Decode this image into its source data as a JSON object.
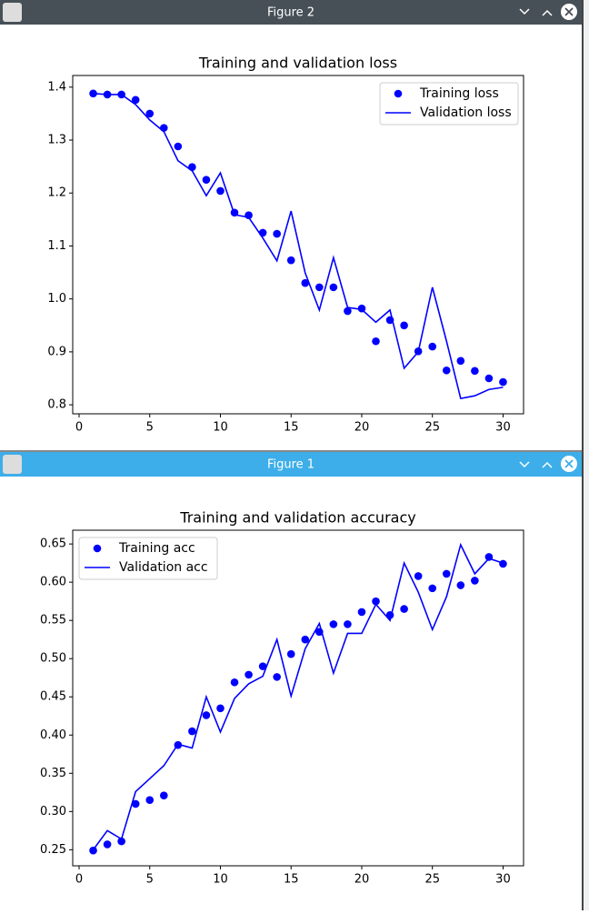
{
  "windows": [
    {
      "title": "Figure 2"
    },
    {
      "title": "Figure 1"
    }
  ],
  "chart_data": [
    {
      "type": "scatter-line",
      "title": "Training and validation loss",
      "x": [
        1,
        2,
        3,
        4,
        5,
        6,
        7,
        8,
        9,
        10,
        11,
        12,
        13,
        14,
        15,
        16,
        17,
        18,
        19,
        20,
        21,
        22,
        23,
        24,
        25,
        26,
        27,
        28,
        29,
        30
      ],
      "series": [
        {
          "name": "Training loss",
          "color": "#0000ff",
          "style": "dots",
          "values": [
            1.388,
            1.386,
            1.386,
            1.376,
            1.35,
            1.323,
            1.288,
            1.249,
            1.225,
            1.204,
            1.163,
            1.158,
            1.125,
            1.123,
            1.073,
            1.03,
            1.022,
            1.022,
            0.977,
            0.982,
            0.92,
            0.96,
            0.95,
            0.901,
            0.91,
            0.865,
            0.883,
            0.864,
            0.85,
            0.843
          ]
        },
        {
          "name": "Validation loss",
          "color": "#0000ff",
          "style": "line",
          "values": [
            1.388,
            1.386,
            1.386,
            1.367,
            1.338,
            1.316,
            1.261,
            1.242,
            1.195,
            1.238,
            1.159,
            1.154,
            1.115,
            1.072,
            1.166,
            1.049,
            0.979,
            1.078,
            0.984,
            0.98,
            0.956,
            0.979,
            0.869,
            0.9,
            1.022,
            0.92,
            0.812,
            0.817,
            0.829,
            0.833
          ]
        }
      ],
      "xlim": [
        -0.45,
        31.45
      ],
      "xticks": [
        0,
        5,
        10,
        15,
        20,
        25,
        30
      ],
      "ylim": [
        0.783,
        1.422
      ],
      "yticks": [
        0.8,
        0.9,
        {
          "value": 1,
          "label": "1.0"
        },
        1.1,
        1.2,
        1.3,
        1.4
      ],
      "legend": "upper right"
    },
    {
      "type": "scatter-line",
      "title": "Training and validation accuracy",
      "x": [
        1,
        2,
        3,
        4,
        5,
        6,
        7,
        8,
        9,
        10,
        11,
        12,
        13,
        14,
        15,
        16,
        17,
        18,
        19,
        20,
        21,
        22,
        23,
        24,
        25,
        26,
        27,
        28,
        29,
        30
      ],
      "series": [
        {
          "name": "Training acc",
          "color": "#0000ff",
          "style": "dots",
          "values": [
            0.249,
            0.257,
            0.261,
            0.31,
            0.315,
            0.321,
            0.387,
            0.405,
            0.426,
            0.435,
            0.469,
            0.479,
            0.49,
            0.476,
            0.506,
            0.525,
            0.535,
            0.545,
            0.545,
            0.561,
            0.575,
            0.557,
            0.565,
            0.608,
            0.592,
            0.611,
            0.596,
            0.602,
            0.633,
            0.624
          ]
        },
        {
          "name": "Validation acc",
          "color": "#0000ff",
          "style": "line",
          "values": [
            0.25,
            0.275,
            0.264,
            0.326,
            0.343,
            0.36,
            0.388,
            0.383,
            0.45,
            0.404,
            0.448,
            0.467,
            0.477,
            0.525,
            0.451,
            0.513,
            0.546,
            0.481,
            0.533,
            0.533,
            0.571,
            0.55,
            0.625,
            0.587,
            0.538,
            0.581,
            0.649,
            0.611,
            0.631,
            0.625
          ]
        }
      ],
      "xlim": [
        -0.45,
        31.45
      ],
      "xticks": [
        0,
        5,
        10,
        15,
        20,
        25,
        30
      ],
      "ylim": [
        0.229,
        0.668
      ],
      "yticks": [
        0.25,
        {
          "value": 0.3,
          "label": "0.30"
        },
        0.35,
        {
          "value": 0.4,
          "label": "0.40"
        },
        0.45,
        {
          "value": 0.5,
          "label": "0.50"
        },
        0.55,
        {
          "value": 0.6,
          "label": "0.60"
        },
        0.65
      ],
      "legend": "upper left"
    }
  ]
}
